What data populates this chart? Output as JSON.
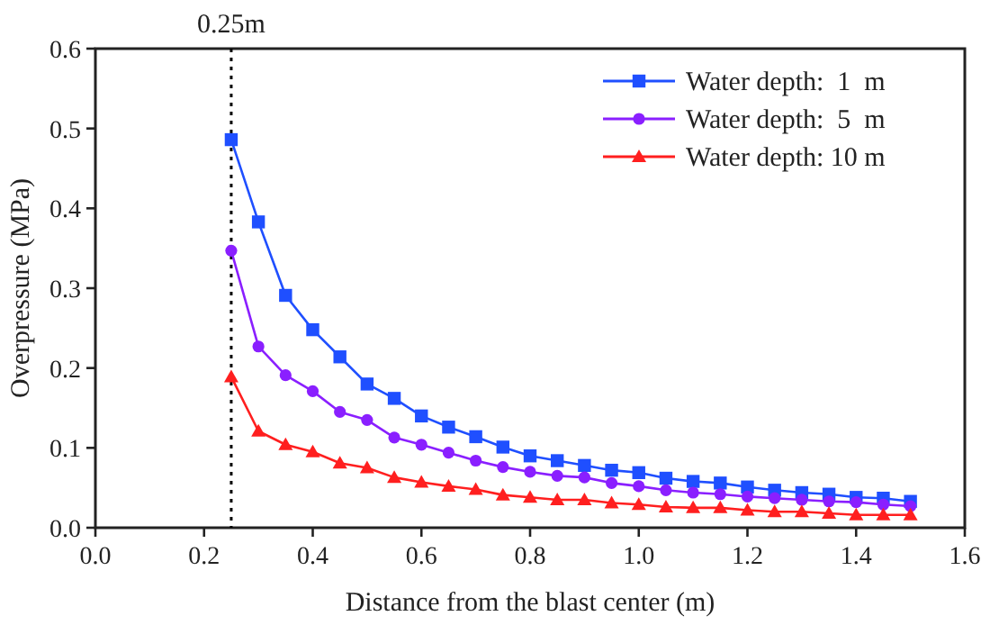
{
  "chart_data": {
    "type": "line",
    "xlabel": "Distance from the blast center (m)",
    "ylabel": "Overpressure (MPa)",
    "x": [
      0.25,
      0.3,
      0.35,
      0.4,
      0.45,
      0.5,
      0.55,
      0.6,
      0.65,
      0.7,
      0.75,
      0.8,
      0.85,
      0.9,
      0.95,
      1.0,
      1.05,
      1.1,
      1.15,
      1.2,
      1.25,
      1.3,
      1.35,
      1.4,
      1.45,
      1.5
    ],
    "series": [
      {
        "name": "Water depth:  1  m",
        "color": "#1f4fff",
        "marker": "square",
        "values": [
          0.486,
          0.383,
          0.291,
          0.248,
          0.214,
          0.18,
          0.162,
          0.14,
          0.126,
          0.114,
          0.101,
          0.09,
          0.084,
          0.078,
          0.072,
          0.069,
          0.062,
          0.058,
          0.056,
          0.051,
          0.047,
          0.044,
          0.042,
          0.038,
          0.037,
          0.033
        ]
      },
      {
        "name": "Water depth:  5  m",
        "color": "#8a1fff",
        "marker": "circle",
        "values": [
          0.347,
          0.227,
          0.191,
          0.171,
          0.145,
          0.135,
          0.113,
          0.104,
          0.094,
          0.084,
          0.076,
          0.07,
          0.065,
          0.063,
          0.056,
          0.052,
          0.047,
          0.044,
          0.042,
          0.039,
          0.037,
          0.035,
          0.033,
          0.032,
          0.029,
          0.027
        ]
      },
      {
        "name": "Water depth: 10 m",
        "color": "#ff1f1f",
        "marker": "triangle",
        "values": [
          0.189,
          0.121,
          0.104,
          0.095,
          0.081,
          0.075,
          0.063,
          0.057,
          0.052,
          0.048,
          0.041,
          0.038,
          0.035,
          0.035,
          0.031,
          0.029,
          0.026,
          0.025,
          0.025,
          0.022,
          0.02,
          0.02,
          0.018,
          0.016,
          0.016,
          0.016
        ]
      }
    ],
    "xlim": [
      0,
      1.6
    ],
    "xticks": [
      {
        "value": 0,
        "label": "0.0"
      },
      0.2,
      0.4,
      0.6,
      0.8,
      {
        "value": 1,
        "label": "1.0"
      },
      1.2,
      1.4,
      1.6
    ],
    "ylim": [
      0,
      0.6
    ],
    "yticks": [
      {
        "value": 0,
        "label": "0.0"
      },
      0.1,
      0.2,
      0.3,
      0.4,
      0.5,
      0.6
    ],
    "ref_lines": [
      {
        "axis": "x",
        "value": 0.25,
        "label": "0.25m",
        "color": "#000000",
        "line_style": "dotted"
      }
    ],
    "legend": "top right",
    "grid": false
  }
}
